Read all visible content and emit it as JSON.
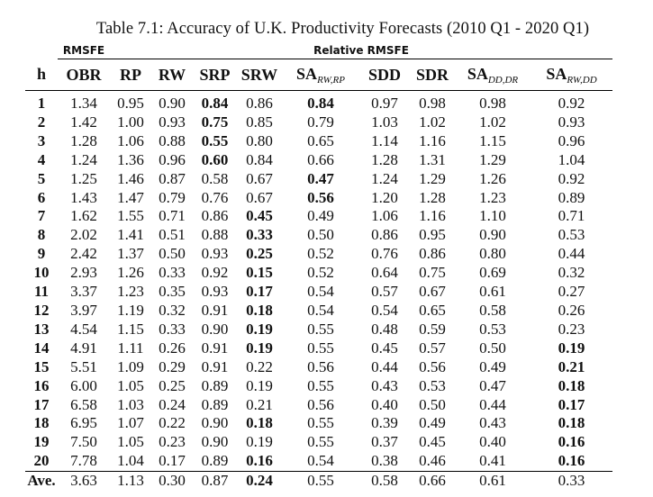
{
  "caption": "Table 7.1: Accuracy of U.K. Productivity Forecasts (2010 Q1 - 2020 Q1)",
  "group_headers": {
    "rmsfe": "RMSFE",
    "relative": "Relative RMSFE"
  },
  "columns": [
    {
      "key": "h",
      "label": "h",
      "sub": ""
    },
    {
      "key": "obr",
      "label": "OBR",
      "sub": ""
    },
    {
      "key": "rp",
      "label": "RP",
      "sub": ""
    },
    {
      "key": "rw",
      "label": "RW",
      "sub": ""
    },
    {
      "key": "srp",
      "label": "SRP",
      "sub": ""
    },
    {
      "key": "srw",
      "label": "SRW",
      "sub": ""
    },
    {
      "key": "sa_rw_rp",
      "label": "SA",
      "sub": "RW,RP"
    },
    {
      "key": "sdd",
      "label": "SDD",
      "sub": ""
    },
    {
      "key": "sdr",
      "label": "SDR",
      "sub": ""
    },
    {
      "key": "sa_dd_dr",
      "label": "SA",
      "sub": "DD,DR"
    },
    {
      "key": "sa_rw_dd",
      "label": "SA",
      "sub": "RW,DD"
    }
  ],
  "rows": [
    {
      "h": "1",
      "vals": [
        "1.34",
        "0.95",
        "0.90",
        "0.84",
        "0.86",
        "0.84",
        "0.97",
        "0.98",
        "0.98",
        "0.92"
      ],
      "bold": [
        3,
        5
      ]
    },
    {
      "h": "2",
      "vals": [
        "1.42",
        "1.00",
        "0.93",
        "0.75",
        "0.85",
        "0.79",
        "1.03",
        "1.02",
        "1.02",
        "0.93"
      ],
      "bold": [
        3
      ]
    },
    {
      "h": "3",
      "vals": [
        "1.28",
        "1.06",
        "0.88",
        "0.55",
        "0.80",
        "0.65",
        "1.14",
        "1.16",
        "1.15",
        "0.96"
      ],
      "bold": [
        3
      ]
    },
    {
      "h": "4",
      "vals": [
        "1.24",
        "1.36",
        "0.96",
        "0.60",
        "0.84",
        "0.66",
        "1.28",
        "1.31",
        "1.29",
        "1.04"
      ],
      "bold": [
        3
      ]
    },
    {
      "h": "5",
      "vals": [
        "1.25",
        "1.46",
        "0.87",
        "0.58",
        "0.67",
        "0.47",
        "1.24",
        "1.29",
        "1.26",
        "0.92"
      ],
      "bold": [
        5
      ]
    },
    {
      "h": "6",
      "vals": [
        "1.43",
        "1.47",
        "0.79",
        "0.76",
        "0.67",
        "0.56",
        "1.20",
        "1.28",
        "1.23",
        "0.89"
      ],
      "bold": [
        5
      ]
    },
    {
      "h": "7",
      "vals": [
        "1.62",
        "1.55",
        "0.71",
        "0.86",
        "0.45",
        "0.49",
        "1.06",
        "1.16",
        "1.10",
        "0.71"
      ],
      "bold": [
        4
      ]
    },
    {
      "h": "8",
      "vals": [
        "2.02",
        "1.41",
        "0.51",
        "0.88",
        "0.33",
        "0.50",
        "0.86",
        "0.95",
        "0.90",
        "0.53"
      ],
      "bold": [
        4
      ]
    },
    {
      "h": "9",
      "vals": [
        "2.42",
        "1.37",
        "0.50",
        "0.93",
        "0.25",
        "0.52",
        "0.76",
        "0.86",
        "0.80",
        "0.44"
      ],
      "bold": [
        4
      ]
    },
    {
      "h": "10",
      "vals": [
        "2.93",
        "1.26",
        "0.33",
        "0.92",
        "0.15",
        "0.52",
        "0.64",
        "0.75",
        "0.69",
        "0.32"
      ],
      "bold": [
        4
      ]
    },
    {
      "h": "11",
      "vals": [
        "3.37",
        "1.23",
        "0.35",
        "0.93",
        "0.17",
        "0.54",
        "0.57",
        "0.67",
        "0.61",
        "0.27"
      ],
      "bold": [
        4
      ]
    },
    {
      "h": "12",
      "vals": [
        "3.97",
        "1.19",
        "0.32",
        "0.91",
        "0.18",
        "0.54",
        "0.54",
        "0.65",
        "0.58",
        "0.26"
      ],
      "bold": [
        4
      ]
    },
    {
      "h": "13",
      "vals": [
        "4.54",
        "1.15",
        "0.33",
        "0.90",
        "0.19",
        "0.55",
        "0.48",
        "0.59",
        "0.53",
        "0.23"
      ],
      "bold": [
        4
      ]
    },
    {
      "h": "14",
      "vals": [
        "4.91",
        "1.11",
        "0.26",
        "0.91",
        "0.19",
        "0.55",
        "0.45",
        "0.57",
        "0.50",
        "0.19"
      ],
      "bold": [
        4,
        9
      ]
    },
    {
      "h": "15",
      "vals": [
        "5.51",
        "1.09",
        "0.29",
        "0.91",
        "0.22",
        "0.56",
        "0.44",
        "0.56",
        "0.49",
        "0.21"
      ],
      "bold": [
        9
      ]
    },
    {
      "h": "16",
      "vals": [
        "6.00",
        "1.05",
        "0.25",
        "0.89",
        "0.19",
        "0.55",
        "0.43",
        "0.53",
        "0.47",
        "0.18"
      ],
      "bold": [
        9
      ]
    },
    {
      "h": "17",
      "vals": [
        "6.58",
        "1.03",
        "0.24",
        "0.89",
        "0.21",
        "0.56",
        "0.40",
        "0.50",
        "0.44",
        "0.17"
      ],
      "bold": [
        9
      ]
    },
    {
      "h": "18",
      "vals": [
        "6.95",
        "1.07",
        "0.22",
        "0.90",
        "0.18",
        "0.55",
        "0.39",
        "0.49",
        "0.43",
        "0.18"
      ],
      "bold": [
        4,
        9
      ]
    },
    {
      "h": "19",
      "vals": [
        "7.50",
        "1.05",
        "0.23",
        "0.90",
        "0.19",
        "0.55",
        "0.37",
        "0.45",
        "0.40",
        "0.16"
      ],
      "bold": [
        9
      ]
    },
    {
      "h": "20",
      "vals": [
        "7.78",
        "1.04",
        "0.17",
        "0.89",
        "0.16",
        "0.54",
        "0.38",
        "0.46",
        "0.41",
        "0.16"
      ],
      "bold": [
        4,
        9
      ]
    },
    {
      "h": "Ave.",
      "vals": [
        "3.63",
        "1.13",
        "0.30",
        "0.87",
        "0.24",
        "0.55",
        "0.58",
        "0.66",
        "0.61",
        "0.33"
      ],
      "bold": [
        4
      ]
    }
  ]
}
